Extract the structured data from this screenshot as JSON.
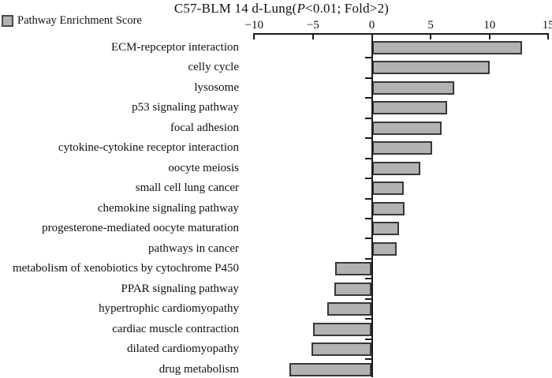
{
  "title": {
    "prefix": "C57-BLM 14 d-Lung(",
    "italic": "P",
    "suffix": "<0.01; Fold>2)"
  },
  "legend": {
    "label": "Pathway Enrichment Score",
    "swatch_color": "#b2b2b2",
    "swatch_border_color": "#4a4a4a"
  },
  "chart_data": {
    "type": "bar",
    "orientation": "horizontal",
    "title": "C57-BLM 14 d-Lung(P<0.01; Fold>2)",
    "legend_entries": [
      "Pathway Enrichment Score"
    ],
    "legend_position": "top-left",
    "xlabel": "",
    "ylabel": "",
    "xlim": [
      -10,
      15
    ],
    "grid": false,
    "bar_color": "#b2b2b2",
    "bar_border_color": "#383838",
    "x_ticks": [
      {
        "value": -10,
        "label": "−10"
      },
      {
        "value": -5,
        "label": "−5"
      },
      {
        "value": 0,
        "label": "0"
      },
      {
        "value": 5,
        "label": "5"
      },
      {
        "value": 10,
        "label": "10"
      },
      {
        "value": 15,
        "label": "15"
      }
    ],
    "categories": [
      "ECM-repceptor interaction",
      "celly cycle",
      "lysosome",
      "p53 signaling pathway",
      "focal adhesion",
      "cytokine-cytokine receptor interaction",
      "oocyte meiosis",
      "small cell lung cancer",
      "chemokine signaling pathway",
      "progesterone-mediated oocyte maturation",
      "pathways in cancer",
      "metabolism of xenobiotics by cytochrome P450",
      "PPAR signaling pathway",
      "hypertrophic cardiomyopathy",
      "cardiac muscle contraction",
      "dilated cardiomyopathy",
      "drug metabolism"
    ],
    "values": [
      12.8,
      10.0,
      7.0,
      6.4,
      5.9,
      5.1,
      4.1,
      2.7,
      2.8,
      2.3,
      2.1,
      -3.1,
      -3.2,
      -3.8,
      -5.0,
      -5.1,
      -7.0
    ]
  }
}
